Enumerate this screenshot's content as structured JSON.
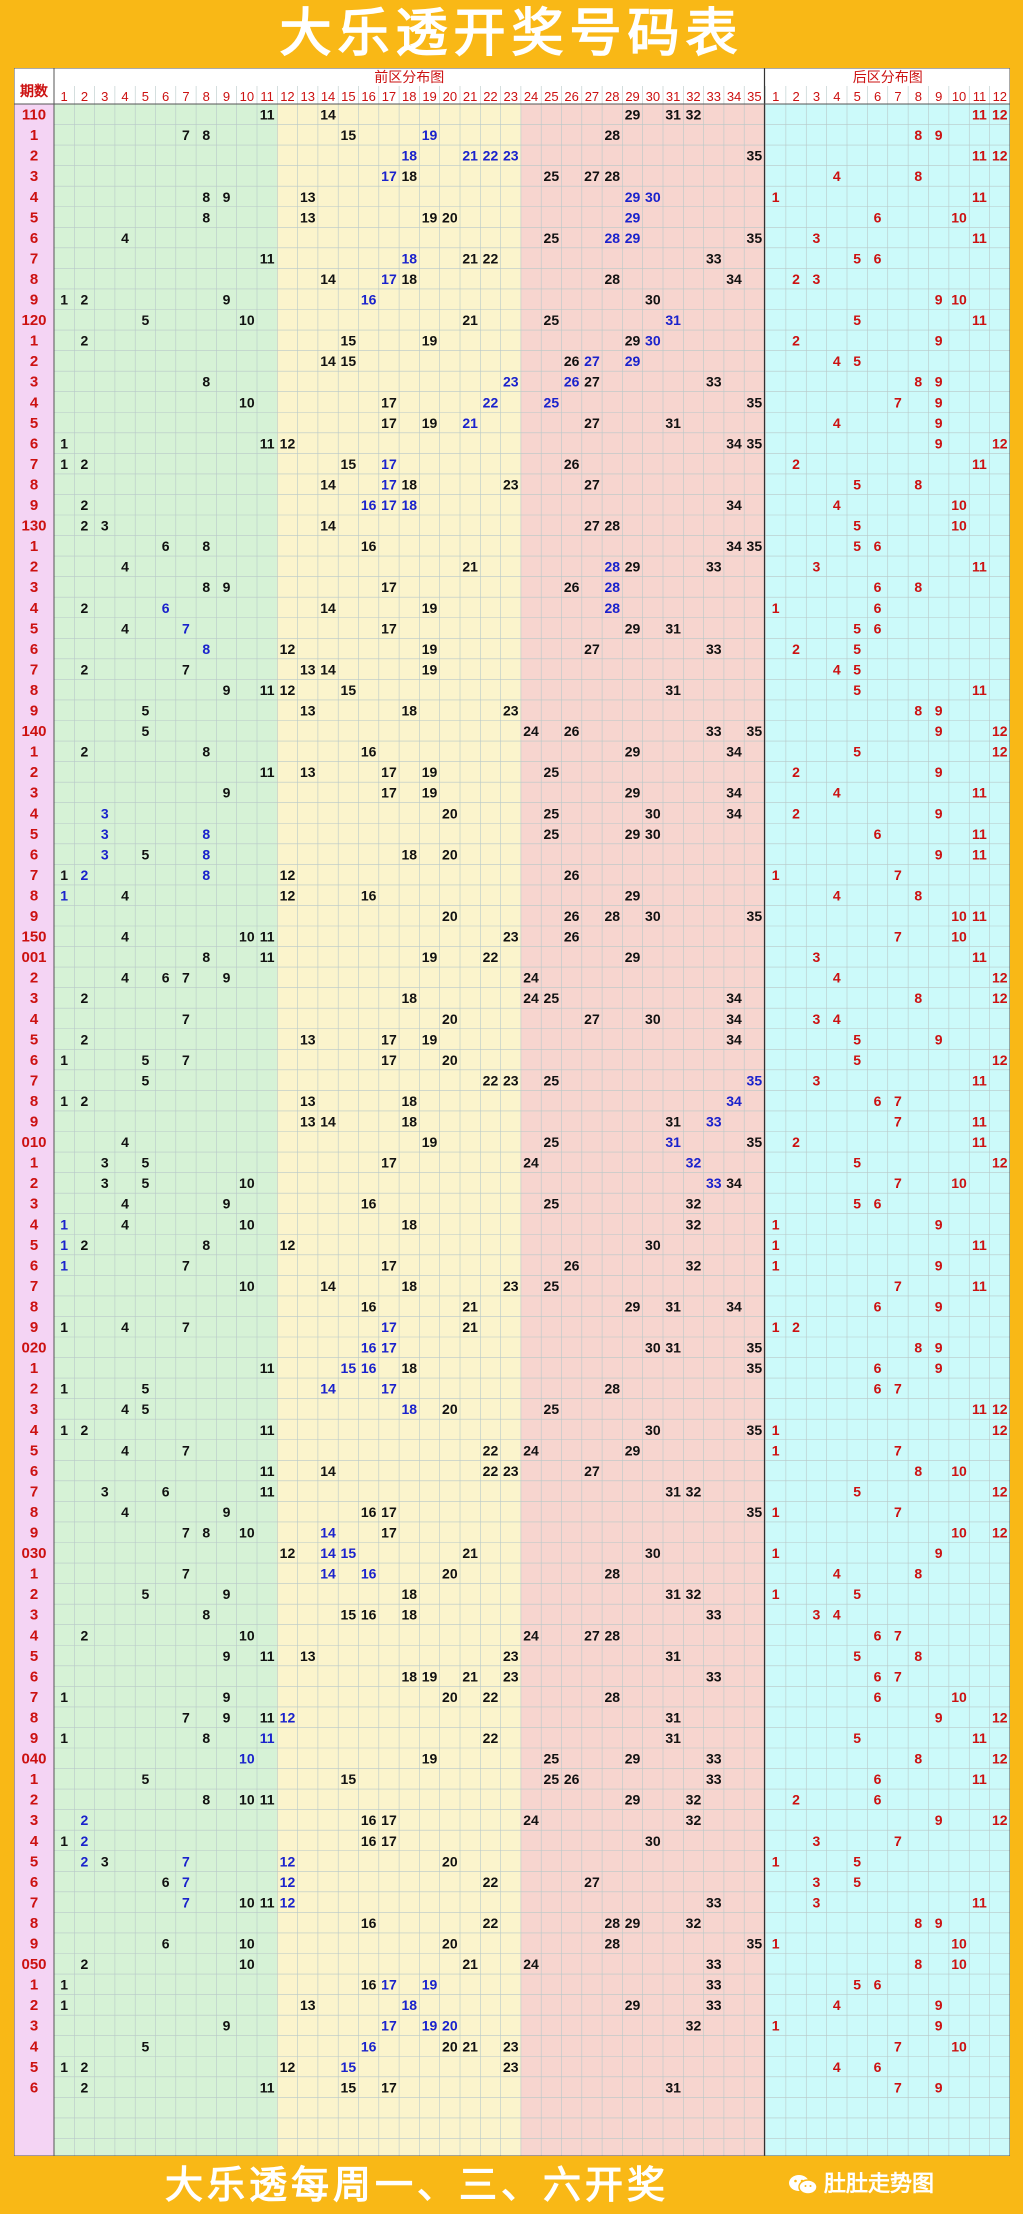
{
  "title": "大乐透开奖号码表",
  "header": {
    "period_label": "期数",
    "front_label": "前区分布图",
    "back_label": "后区分布图"
  },
  "front_columns": [
    "1",
    "2",
    "3",
    "4",
    "5",
    "6",
    "7",
    "8",
    "9",
    "10",
    "11",
    "12",
    "13",
    "14",
    "15",
    "16",
    "17",
    "18",
    "19",
    "20",
    "21",
    "22",
    "23",
    "24",
    "25",
    "26",
    "27",
    "28",
    "29",
    "30",
    "31",
    "32",
    "33",
    "34",
    "35"
  ],
  "back_columns": [
    "1",
    "2",
    "3",
    "4",
    "5",
    "6",
    "7",
    "8",
    "9",
    "10",
    "11",
    "12"
  ],
  "colors": {
    "period_red": "#cc1111",
    "draw_black": "#111111",
    "draw_blue": "#1a22cc",
    "back_red": "#cc1111",
    "zone_green": "#d6f2d6",
    "zone_yellow": "#fbf4cc",
    "zone_pink": "#f7d5cf",
    "zone_cyan": "#ccfafa",
    "period_bg": "#f4d4f4"
  },
  "rows": [
    {
      "period": "110",
      "front": [
        11,
        14,
        29,
        31,
        32
      ],
      "blue": [],
      "back": [
        11,
        12
      ]
    },
    {
      "period": "1",
      "front": [
        7,
        8,
        15,
        19,
        28
      ],
      "blue": [
        19
      ],
      "back": [
        8,
        9
      ]
    },
    {
      "period": "2",
      "front": [
        18,
        21,
        22,
        23,
        35
      ],
      "blue": [
        18,
        21,
        22,
        23
      ],
      "back": [
        11,
        12
      ]
    },
    {
      "period": "3",
      "front": [
        17,
        18,
        25,
        27,
        28
      ],
      "blue": [
        17
      ],
      "back": [
        4,
        8
      ]
    },
    {
      "period": "4",
      "front": [
        8,
        9,
        13,
        29,
        30
      ],
      "blue": [
        29,
        30
      ],
      "back": [
        1,
        11
      ]
    },
    {
      "period": "5",
      "front": [
        8,
        13,
        19,
        20,
        29
      ],
      "blue": [
        29
      ],
      "back": [
        6,
        10
      ]
    },
    {
      "period": "6",
      "front": [
        4,
        25,
        28,
        29,
        35
      ],
      "blue": [
        28,
        29
      ],
      "back": [
        3,
        11
      ]
    },
    {
      "period": "7",
      "front": [
        11,
        18,
        21,
        22,
        33
      ],
      "blue": [
        18
      ],
      "back": [
        5,
        6
      ]
    },
    {
      "period": "8",
      "front": [
        14,
        17,
        18,
        28,
        34
      ],
      "blue": [
        17
      ],
      "back": [
        2,
        3
      ]
    },
    {
      "period": "9",
      "front": [
        1,
        2,
        9,
        16,
        30
      ],
      "blue": [
        16
      ],
      "back": [
        9,
        10
      ]
    },
    {
      "period": "120",
      "front": [
        5,
        10,
        21,
        25,
        31
      ],
      "blue": [
        31
      ],
      "back": [
        5,
        11
      ]
    },
    {
      "period": "1",
      "front": [
        2,
        15,
        19,
        29,
        30
      ],
      "blue": [
        30
      ],
      "back": [
        2,
        9
      ]
    },
    {
      "period": "2",
      "front": [
        14,
        15,
        26,
        27,
        29
      ],
      "blue": [
        27,
        29
      ],
      "back": [
        4,
        5
      ]
    },
    {
      "period": "3",
      "front": [
        8,
        23,
        26,
        27,
        33
      ],
      "blue": [
        23,
        26
      ],
      "back": [
        8,
        9
      ]
    },
    {
      "period": "4",
      "front": [
        10,
        17,
        22,
        25,
        35
      ],
      "blue": [
        22,
        25
      ],
      "back": [
        7,
        9
      ]
    },
    {
      "period": "5",
      "front": [
        17,
        19,
        21,
        27,
        31
      ],
      "blue": [
        21
      ],
      "back": [
        4,
        9
      ]
    },
    {
      "period": "6",
      "front": [
        1,
        11,
        12,
        34,
        35
      ],
      "blue": [],
      "back": [
        9,
        12
      ]
    },
    {
      "period": "7",
      "front": [
        1,
        2,
        15,
        17,
        26
      ],
      "blue": [
        17
      ],
      "back": [
        2,
        11
      ]
    },
    {
      "period": "8",
      "front": [
        14,
        17,
        18,
        23,
        27
      ],
      "blue": [
        17
      ],
      "back": [
        5,
        8
      ]
    },
    {
      "period": "9",
      "front": [
        2,
        16,
        17,
        18,
        34
      ],
      "blue": [
        16,
        17,
        18
      ],
      "back": [
        4,
        10
      ]
    },
    {
      "period": "130",
      "front": [
        2,
        3,
        14,
        27,
        28
      ],
      "blue": [],
      "back": [
        5,
        10
      ]
    },
    {
      "period": "1",
      "front": [
        6,
        8,
        16,
        34,
        35
      ],
      "blue": [],
      "back": [
        5,
        6
      ]
    },
    {
      "period": "2",
      "front": [
        4,
        21,
        28,
        29,
        33
      ],
      "blue": [
        28
      ],
      "back": [
        3,
        11
      ]
    },
    {
      "period": "3",
      "front": [
        8,
        9,
        17,
        26,
        28
      ],
      "blue": [
        28
      ],
      "back": [
        6,
        8
      ]
    },
    {
      "period": "4",
      "front": [
        2,
        6,
        14,
        19,
        28
      ],
      "blue": [
        6,
        28
      ],
      "back": [
        1,
        6
      ]
    },
    {
      "period": "5",
      "front": [
        4,
        7,
        17,
        29,
        31
      ],
      "blue": [
        7
      ],
      "back": [
        5,
        6
      ]
    },
    {
      "period": "6",
      "front": [
        8,
        12,
        19,
        27,
        33
      ],
      "blue": [
        8
      ],
      "back": [
        2,
        5
      ]
    },
    {
      "period": "7",
      "front": [
        2,
        7,
        13,
        14,
        19
      ],
      "blue": [],
      "back": [
        4,
        5
      ]
    },
    {
      "period": "8",
      "front": [
        9,
        11,
        12,
        15,
        31
      ],
      "blue": [],
      "back": [
        5,
        11
      ]
    },
    {
      "period": "9",
      "front": [
        5,
        13,
        18,
        23
      ],
      "blue": [],
      "back": [
        8,
        9
      ]
    },
    {
      "period": "140",
      "front": [
        5,
        24,
        26,
        33,
        35
      ],
      "blue": [],
      "back": [
        9,
        12
      ]
    },
    {
      "period": "1",
      "front": [
        2,
        8,
        16,
        29,
        34
      ],
      "blue": [],
      "back": [
        5,
        12
      ]
    },
    {
      "period": "2",
      "front": [
        11,
        13,
        17,
        19,
        25
      ],
      "blue": [],
      "back": [
        2,
        9
      ]
    },
    {
      "period": "3",
      "front": [
        9,
        17,
        19,
        29,
        34
      ],
      "blue": [],
      "back": [
        4,
        11
      ]
    },
    {
      "period": "4",
      "front": [
        3,
        20,
        25,
        30,
        34
      ],
      "blue": [
        3
      ],
      "back": [
        2,
        9
      ]
    },
    {
      "period": "5",
      "front": [
        3,
        8,
        25,
        29,
        30
      ],
      "blue": [
        3,
        8
      ],
      "back": [
        6,
        11
      ]
    },
    {
      "period": "6",
      "front": [
        3,
        5,
        8,
        18,
        20
      ],
      "blue": [
        3,
        8
      ],
      "back": [
        9,
        11
      ]
    },
    {
      "period": "7",
      "front": [
        1,
        2,
        8,
        12,
        26
      ],
      "blue": [
        2,
        8
      ],
      "back": [
        1,
        7
      ]
    },
    {
      "period": "8",
      "front": [
        1,
        4,
        12,
        16,
        29
      ],
      "blue": [
        1
      ],
      "back": [
        4,
        8
      ]
    },
    {
      "period": "9",
      "front": [
        20,
        26,
        28,
        30,
        35
      ],
      "blue": [],
      "back": [
        10,
        11
      ]
    },
    {
      "period": "150",
      "front": [
        4,
        10,
        11,
        23,
        26
      ],
      "blue": [],
      "back": [
        7,
        10
      ]
    },
    {
      "period": "001",
      "front": [
        8,
        11,
        19,
        22,
        29
      ],
      "blue": [],
      "back": [
        3,
        11
      ]
    },
    {
      "period": "2",
      "front": [
        4,
        6,
        7,
        9,
        24
      ],
      "blue": [],
      "back": [
        4,
        12
      ]
    },
    {
      "period": "3",
      "front": [
        2,
        18,
        24,
        25,
        34
      ],
      "blue": [],
      "back": [
        8,
        12
      ]
    },
    {
      "period": "4",
      "front": [
        7,
        20,
        27,
        30,
        34
      ],
      "blue": [],
      "back": [
        3,
        4
      ]
    },
    {
      "period": "5",
      "front": [
        2,
        13,
        17,
        19,
        34
      ],
      "blue": [],
      "back": [
        5,
        9
      ]
    },
    {
      "period": "6",
      "front": [
        1,
        5,
        7,
        17,
        20
      ],
      "blue": [],
      "back": [
        5,
        12
      ]
    },
    {
      "period": "7",
      "front": [
        5,
        22,
        23,
        25,
        35
      ],
      "blue": [
        35
      ],
      "back": [
        3,
        11
      ]
    },
    {
      "period": "8",
      "front": [
        1,
        2,
        13,
        18,
        34
      ],
      "blue": [
        34
      ],
      "back": [
        6,
        7
      ]
    },
    {
      "period": "9",
      "front": [
        13,
        14,
        18,
        31,
        33
      ],
      "blue": [
        33
      ],
      "back": [
        7,
        11
      ]
    },
    {
      "period": "010",
      "front": [
        4,
        19,
        25,
        31,
        35
      ],
      "blue": [
        31
      ],
      "back": [
        2,
        11
      ]
    },
    {
      "period": "1",
      "front": [
        3,
        5,
        17,
        24,
        32
      ],
      "blue": [
        32
      ],
      "back": [
        5,
        12
      ]
    },
    {
      "period": "2",
      "front": [
        3,
        5,
        10,
        33,
        34
      ],
      "blue": [
        33
      ],
      "back": [
        7,
        10
      ]
    },
    {
      "period": "3",
      "front": [
        4,
        9,
        16,
        25,
        32
      ],
      "blue": [],
      "back": [
        5,
        6
      ]
    },
    {
      "period": "4",
      "front": [
        1,
        4,
        10,
        18,
        32
      ],
      "blue": [
        1
      ],
      "back": [
        1,
        9
      ]
    },
    {
      "period": "5",
      "front": [
        1,
        2,
        8,
        12,
        30
      ],
      "blue": [
        1
      ],
      "back": [
        1,
        11
      ]
    },
    {
      "period": "6",
      "front": [
        1,
        7,
        17,
        26,
        32
      ],
      "blue": [
        1
      ],
      "back": [
        1,
        9
      ]
    },
    {
      "period": "7",
      "front": [
        10,
        14,
        18,
        23,
        25
      ],
      "blue": [],
      "back": [
        7,
        11
      ]
    },
    {
      "period": "8",
      "front": [
        16,
        21,
        29,
        31,
        34
      ],
      "blue": [],
      "back": [
        6,
        9
      ]
    },
    {
      "period": "9",
      "front": [
        1,
        4,
        7,
        17,
        21
      ],
      "blue": [
        17
      ],
      "back": [
        1,
        2
      ]
    },
    {
      "period": "020",
      "front": [
        16,
        17,
        30,
        31,
        35
      ],
      "blue": [
        16,
        17
      ],
      "back": [
        8,
        9
      ]
    },
    {
      "period": "1",
      "front": [
        11,
        15,
        16,
        18,
        35
      ],
      "blue": [
        15,
        16
      ],
      "back": [
        6,
        9
      ]
    },
    {
      "period": "2",
      "front": [
        1,
        5,
        14,
        17,
        28
      ],
      "blue": [
        14,
        17
      ],
      "back": [
        6,
        7
      ]
    },
    {
      "period": "3",
      "front": [
        4,
        5,
        18,
        20,
        25
      ],
      "blue": [
        18
      ],
      "back": [
        11,
        12
      ]
    },
    {
      "period": "4",
      "front": [
        1,
        2,
        11,
        30,
        35
      ],
      "blue": [],
      "back": [
        1,
        12
      ]
    },
    {
      "period": "5",
      "front": [
        4,
        7,
        22,
        24,
        29
      ],
      "blue": [],
      "back": [
        1,
        7
      ]
    },
    {
      "period": "6",
      "front": [
        11,
        14,
        22,
        23,
        27
      ],
      "blue": [],
      "back": [
        8,
        10
      ]
    },
    {
      "period": "7",
      "front": [
        3,
        6,
        11,
        31,
        32
      ],
      "blue": [],
      "back": [
        5,
        12
      ]
    },
    {
      "period": "8",
      "front": [
        4,
        9,
        16,
        17,
        35
      ],
      "blue": [],
      "back": [
        1,
        7
      ]
    },
    {
      "period": "9",
      "front": [
        7,
        8,
        10,
        14,
        17
      ],
      "blue": [
        14
      ],
      "back": [
        10,
        12
      ]
    },
    {
      "period": "030",
      "front": [
        12,
        14,
        15,
        21,
        30
      ],
      "blue": [
        14,
        15
      ],
      "back": [
        1,
        9
      ]
    },
    {
      "period": "1",
      "front": [
        7,
        14,
        16,
        20,
        28
      ],
      "blue": [
        14,
        16
      ],
      "back": [
        4,
        8
      ]
    },
    {
      "period": "2",
      "front": [
        5,
        9,
        18,
        31,
        32
      ],
      "blue": [],
      "back": [
        1,
        5
      ]
    },
    {
      "period": "3",
      "front": [
        8,
        15,
        16,
        18,
        33
      ],
      "blue": [],
      "back": [
        3,
        4
      ]
    },
    {
      "period": "4",
      "front": [
        2,
        10,
        24,
        27,
        28
      ],
      "blue": [],
      "back": [
        6,
        7
      ]
    },
    {
      "period": "5",
      "front": [
        9,
        11,
        13,
        23,
        31
      ],
      "blue": [],
      "back": [
        5,
        8
      ]
    },
    {
      "period": "6",
      "front": [
        18,
        19,
        21,
        23,
        33
      ],
      "blue": [],
      "back": [
        6,
        7
      ]
    },
    {
      "period": "7",
      "front": [
        1,
        9,
        20,
        22,
        28
      ],
      "blue": [],
      "back": [
        6,
        10
      ]
    },
    {
      "period": "8",
      "front": [
        7,
        9,
        11,
        12,
        31
      ],
      "blue": [
        12
      ],
      "back": [
        9,
        12
      ]
    },
    {
      "period": "9",
      "front": [
        1,
        8,
        11,
        22,
        31
      ],
      "blue": [
        11
      ],
      "back": [
        5,
        11
      ]
    },
    {
      "period": "040",
      "front": [
        10,
        19,
        25,
        29,
        33
      ],
      "blue": [
        10
      ],
      "back": [
        8,
        12
      ]
    },
    {
      "period": "1",
      "front": [
        5,
        15,
        25,
        26,
        33
      ],
      "blue": [],
      "back": [
        6,
        11
      ]
    },
    {
      "period": "2",
      "front": [
        8,
        10,
        11,
        29,
        32
      ],
      "blue": [],
      "back": [
        2,
        6
      ]
    },
    {
      "period": "3",
      "front": [
        2,
        16,
        17,
        24,
        32
      ],
      "blue": [
        2
      ],
      "back": [
        9,
        12
      ]
    },
    {
      "period": "4",
      "front": [
        1,
        2,
        16,
        17,
        30
      ],
      "blue": [
        2
      ],
      "back": [
        3,
        7
      ]
    },
    {
      "period": "5",
      "front": [
        2,
        3,
        7,
        12,
        20
      ],
      "blue": [
        2,
        7,
        12
      ],
      "back": [
        1,
        5
      ]
    },
    {
      "period": "6",
      "front": [
        6,
        7,
        12,
        22,
        27
      ],
      "blue": [
        7,
        12
      ],
      "back": [
        3,
        5
      ]
    },
    {
      "period": "7",
      "front": [
        7,
        10,
        11,
        12,
        33
      ],
      "blue": [
        7,
        12
      ],
      "back": [
        3,
        11
      ]
    },
    {
      "period": "8",
      "front": [
        16,
        22,
        28,
        29,
        32
      ],
      "blue": [],
      "back": [
        8,
        9
      ]
    },
    {
      "period": "9",
      "front": [
        6,
        10,
        20,
        28,
        35
      ],
      "blue": [],
      "back": [
        1,
        10
      ]
    },
    {
      "period": "050",
      "front": [
        2,
        10,
        21,
        24,
        33
      ],
      "blue": [],
      "back": [
        8,
        10
      ]
    },
    {
      "period": "1",
      "front": [
        1,
        16,
        17,
        19,
        33
      ],
      "blue": [
        17,
        19
      ],
      "back": [
        5,
        6
      ]
    },
    {
      "period": "2",
      "front": [
        1,
        13,
        18,
        29,
        33
      ],
      "blue": [
        18
      ],
      "back": [
        4,
        9
      ]
    },
    {
      "period": "3",
      "front": [
        9,
        17,
        19,
        20,
        32
      ],
      "blue": [
        17,
        19,
        20
      ],
      "back": [
        1,
        9
      ]
    },
    {
      "period": "4",
      "front": [
        5,
        16,
        20,
        21,
        23
      ],
      "blue": [
        16
      ],
      "back": [
        7,
        10
      ]
    },
    {
      "period": "5",
      "front": [
        1,
        2,
        12,
        15,
        23
      ],
      "blue": [
        15
      ],
      "back": [
        4,
        6
      ]
    },
    {
      "period": "6",
      "front": [
        2,
        11,
        15,
        17,
        31
      ],
      "blue": [],
      "back": [
        7,
        9
      ]
    }
  ],
  "footer": {
    "text": "大乐透每周一、三、六开奖",
    "brand": "肚肚走势图",
    "brand_icon": "wechat-icon"
  }
}
